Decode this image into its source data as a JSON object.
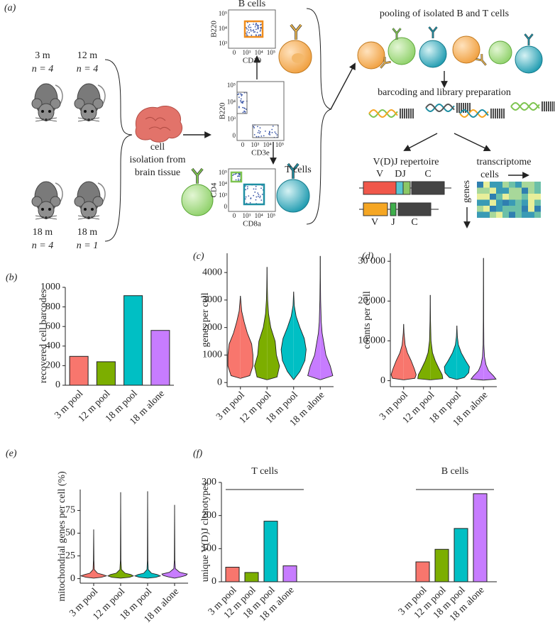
{
  "panel_labels": [
    "(a)",
    "(b)",
    "(c)",
    "(d)",
    "(e)",
    "(f)"
  ],
  "panel_a": {
    "mice": [
      {
        "age": "3 m",
        "n": "n = 4"
      },
      {
        "age": "12 m",
        "n": "n = 4"
      },
      {
        "age": "18 m",
        "n": "n = 4"
      },
      {
        "age": "18 m",
        "n": "n = 1"
      }
    ],
    "isolation": [
      "cell",
      "isolation from",
      "brain tissue"
    ],
    "flow": [
      {
        "title": "B cells",
        "y_label": "B220",
        "x_label": "CD19",
        "y_ticks": [
          "10⁵",
          "10⁴",
          "10³"
        ],
        "x_ticks": [
          "0",
          "10³",
          "10⁴",
          "10⁵"
        ]
      },
      {
        "y_label": "B220",
        "x_label": "CD3e",
        "y_ticks": [
          "10⁵",
          "10⁴",
          "10³",
          "0"
        ],
        "x_ticks": [
          "0",
          "10³",
          "10⁴",
          "10⁵"
        ]
      },
      {
        "title": "T cells",
        "y_label": "CD4",
        "x_label": "CD8a",
        "y_ticks": [
          "10⁵",
          "10⁴",
          "10³",
          "0"
        ],
        "x_ticks": [
          "0",
          "10³",
          "10⁴",
          "10⁵"
        ]
      }
    ],
    "pooling": "pooling of isolated B and T cells",
    "barcoding": "barcoding and library preparation",
    "vdj": {
      "title": "V(D)J repertoire",
      "heavy": [
        "V",
        "DJ",
        "C"
      ],
      "light": [
        "V",
        "J",
        "C"
      ]
    },
    "transcriptome": {
      "title": "transcriptome",
      "cells": "cells",
      "genes": "genes"
    }
  },
  "chart_data": [
    {
      "type": "bar",
      "y_label": "recovered cell barcodes",
      "categories": [
        "3 m pool",
        "12 m pool",
        "18 m pool",
        "18 m alone"
      ],
      "values": [
        295,
        240,
        915,
        560
      ],
      "colors": [
        "#f8766d",
        "#7cae00",
        "#00bfc4",
        "#c77cff"
      ],
      "ylim": [
        0,
        1000
      ],
      "yticks": [
        0,
        200,
        400,
        600,
        800,
        1000
      ]
    },
    {
      "type": "violin",
      "y_label": "genes per cell",
      "categories": [
        "3 m pool",
        "12 m pool",
        "18 m pool",
        "18 m alone"
      ],
      "colors": [
        "#f8766d",
        "#7cae00",
        "#00bfc4",
        "#c77cff"
      ],
      "violins": [
        {
          "y": [
            150,
            250,
            600,
            1000,
            1400,
            1800,
            2200,
            2600,
            3150
          ],
          "density": [
            0,
            0.75,
            1,
            1,
            0.9,
            0.55,
            0.3,
            0.1,
            0
          ]
        },
        {
          "y": [
            100,
            200,
            600,
            1000,
            1500,
            2000,
            2500,
            3000,
            3500,
            4200
          ],
          "density": [
            0,
            0.8,
            1,
            0.75,
            0.65,
            0.3,
            0.12,
            0.05,
            0.02,
            0
          ]
        },
        {
          "y": [
            100,
            400,
            800,
            1200,
            1600,
            2000,
            2400,
            2800,
            3300
          ],
          "density": [
            0,
            0.5,
            0.9,
            1,
            0.85,
            0.5,
            0.2,
            0.05,
            0
          ]
        },
        {
          "y": [
            100,
            250,
            600,
            1000,
            1400,
            1800,
            2200,
            3000,
            3800,
            4600
          ],
          "density": [
            0,
            1,
            0.8,
            0.45,
            0.3,
            0.15,
            0.08,
            0.03,
            0.01,
            0
          ]
        }
      ],
      "ylim": [
        -150,
        4700
      ],
      "yticks": [
        0,
        1000,
        2000,
        3000,
        4000
      ]
    },
    {
      "type": "violin",
      "y_label": "counts per cell",
      "categories": [
        "3 m pool",
        "12 m pool",
        "18 m pool",
        "18 m alone"
      ],
      "colors": [
        "#f8766d",
        "#7cae00",
        "#00bfc4",
        "#c77cff"
      ],
      "violins": [
        {
          "y": [
            200,
            600,
            1500,
            3000,
            5000,
            7000,
            9000,
            12000,
            14200
          ],
          "density": [
            0,
            0.9,
            1,
            0.85,
            0.6,
            0.3,
            0.12,
            0.03,
            0
          ]
        },
        {
          "y": [
            200,
            500,
            1500,
            3000,
            5000,
            7000,
            10000,
            15000,
            21500
          ],
          "density": [
            0,
            1,
            0.95,
            0.7,
            0.4,
            0.18,
            0.06,
            0.02,
            0
          ]
        },
        {
          "y": [
            300,
            800,
            2000,
            3500,
            5000,
            7000,
            9000,
            11000,
            13800
          ],
          "density": [
            0,
            0.6,
            0.95,
            1,
            0.7,
            0.35,
            0.12,
            0.04,
            0
          ]
        },
        {
          "y": [
            150,
            400,
            1200,
            2500,
            4000,
            6000,
            9000,
            15000,
            22000,
            30800
          ],
          "density": [
            0,
            1,
            0.8,
            0.4,
            0.2,
            0.08,
            0.03,
            0.015,
            0.01,
            0
          ]
        }
      ],
      "ylim": [
        -1500,
        32000
      ],
      "yticks": [
        0,
        {
          "value": 10000,
          "label": "10 000"
        },
        {
          "value": 20000,
          "label": "20 000"
        },
        {
          "value": 30000,
          "label": "30 000"
        }
      ]
    },
    {
      "type": "violin",
      "y_label": "mitochondrial genes per cell (%)",
      "categories": [
        "3 m pool",
        "12 m pool",
        "18 m pool",
        "18 m alone"
      ],
      "colors": [
        "#f8766d",
        "#7cae00",
        "#00bfc4",
        "#c77cff"
      ],
      "violins": [
        {
          "y": [
            0.5,
            1.5,
            3,
            4.5,
            6,
            10,
            20,
            54
          ],
          "density": [
            0,
            0.6,
            1,
            0.7,
            0.3,
            0.05,
            0.02,
            0
          ]
        },
        {
          "y": [
            0.5,
            1.5,
            3,
            4.5,
            6,
            10,
            20,
            95
          ],
          "density": [
            0,
            0.7,
            1,
            0.8,
            0.35,
            0.06,
            0.02,
            0
          ]
        },
        {
          "y": [
            0.5,
            1.5,
            3,
            4.5,
            6,
            10,
            20,
            96
          ],
          "density": [
            0,
            0.65,
            1,
            0.75,
            0.3,
            0.05,
            0.02,
            0
          ]
        },
        {
          "y": [
            0.5,
            2,
            3.5,
            5,
            7,
            11,
            20,
            81
          ],
          "density": [
            0,
            0.5,
            0.9,
            1,
            0.4,
            0.06,
            0.02,
            0
          ]
        }
      ],
      "ylim": [
        -5,
        98
      ],
      "yticks": [
        0,
        25,
        50,
        75
      ]
    },
    {
      "type": "grouped_bar",
      "y_label": "unique V(D)J clonotypes",
      "categories": [
        "3 m pool",
        "12 m pool",
        "18 m pool",
        "18 m alone"
      ],
      "colors": [
        "#f8766d",
        "#7cae00",
        "#00bfc4",
        "#c77cff"
      ],
      "series": [
        {
          "name": "T cells",
          "values": [
            44,
            28,
            183,
            48
          ]
        },
        {
          "name": "B cells",
          "values": [
            60,
            98,
            161,
            266
          ]
        }
      ],
      "ylim": [
        0,
        300
      ],
      "yticks": [
        0,
        100,
        200,
        300
      ]
    }
  ]
}
